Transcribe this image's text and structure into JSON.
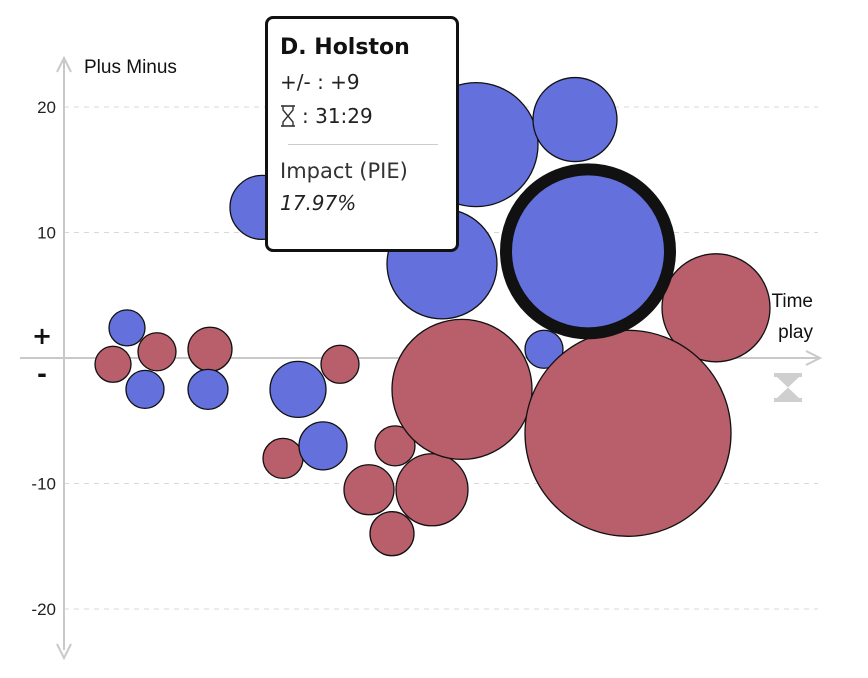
{
  "chart_data": {
    "type": "bubble",
    "ylabel": "Plus Minus",
    "xlabel_lines": [
      "Time",
      "play"
    ],
    "ylim": [
      -23,
      24
    ],
    "yticks": [
      20,
      10,
      -10,
      -20
    ],
    "plus_sign": "+",
    "minus_sign": "-",
    "grid": true,
    "colors": {
      "positive": "#6470db",
      "negative": "#b85f6b",
      "axis": "#c9c9c9",
      "grid": "#d8d8d8"
    },
    "bubbles": [
      {
        "x": 1,
        "y": 2.4,
        "size": 18,
        "group": "positive"
      },
      {
        "x": 2,
        "y": -0.5,
        "size": 18,
        "group": "negative"
      },
      {
        "x": 3,
        "y": 0.5,
        "size": 19,
        "group": "negative"
      },
      {
        "x": 4,
        "y": -2.5,
        "size": 19,
        "group": "positive"
      },
      {
        "x": 5,
        "y": 0.7,
        "size": 22,
        "group": "negative"
      },
      {
        "x": 6,
        "y": -2.5,
        "size": 20,
        "group": "positive"
      },
      {
        "x": 7,
        "y": 12.0,
        "size": 32,
        "group": "positive"
      },
      {
        "x": 8,
        "y": -2.5,
        "size": 28,
        "group": "positive"
      },
      {
        "x": 9,
        "y": -8.0,
        "size": 20,
        "group": "negative"
      },
      {
        "x": 10,
        "y": -7.0,
        "size": 24,
        "group": "positive"
      },
      {
        "x": 11,
        "y": -0.5,
        "size": 19,
        "group": "negative"
      },
      {
        "x": 12,
        "y": -7.0,
        "size": 20,
        "group": "negative"
      },
      {
        "x": 13,
        "y": -10.5,
        "size": 25,
        "group": "negative"
      },
      {
        "x": 14,
        "y": -14.0,
        "size": 22,
        "group": "negative"
      },
      {
        "x": 15,
        "y": -10.5,
        "size": 36,
        "group": "negative"
      },
      {
        "x": 16,
        "y": 7.5,
        "size": 55,
        "group": "positive"
      },
      {
        "x": 17,
        "y": -2.5,
        "size": 70,
        "group": "negative"
      },
      {
        "x": 18,
        "y": 17.0,
        "size": 62,
        "group": "positive"
      },
      {
        "x": 19,
        "y": 0.7,
        "size": 19,
        "group": "positive"
      },
      {
        "x": 20,
        "y": 19.0,
        "size": 42,
        "group": "positive"
      },
      {
        "x": 21,
        "y": 8.5,
        "size": 82,
        "group": "positive",
        "highlighted": true
      },
      {
        "x": 22,
        "y": 4.0,
        "size": 54,
        "group": "negative"
      },
      {
        "x": 23,
        "y": -6.0,
        "size": 103,
        "group": "negative"
      }
    ]
  },
  "tooltip": {
    "name": "D. Holston",
    "pm_label": "+/- : +9",
    "time_label": ": 31:29",
    "impact_label": "Impact (PIE)",
    "impact_value": "17.97%"
  }
}
